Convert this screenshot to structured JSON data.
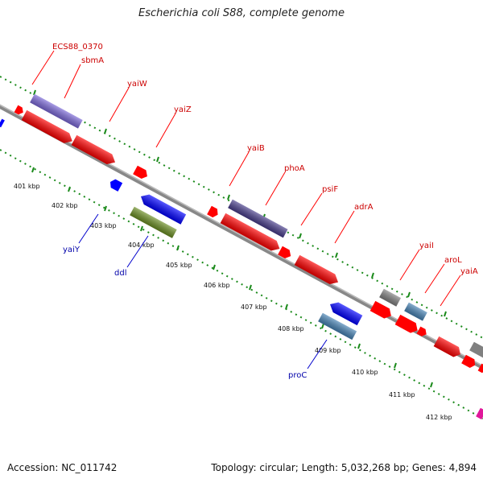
{
  "title": "Escherichia coli S88, complete genome",
  "footer": {
    "accession": "Accession: NC_011742",
    "summary": "Topology: circular; Length: 5,032,268 bp; Genes: 4,894"
  },
  "colors": {
    "forward_gene": "#ff0000",
    "reverse_gene": "#0000ff",
    "label_forward": "#cc0000",
    "label_reverse": "#0000aa",
    "tick": "#1a8a1a",
    "backbone": "#888888"
  },
  "scale_ticks": [
    "401 kbp",
    "402 kbp",
    "403 kbp",
    "404 kbp",
    "405 kbp",
    "406 kbp",
    "407 kbp",
    "408 kbp",
    "409 kbp",
    "410 kbp",
    "411 kbp",
    "412 kbp"
  ],
  "genes_upper": [
    {
      "id": "g1",
      "label": "ECS88_0370",
      "color": "#ff0000"
    },
    {
      "id": "g2",
      "label": "sbmA",
      "color": "#7b68d8"
    },
    {
      "id": "g3",
      "label": "yaiW",
      "color": "#ff0000"
    },
    {
      "id": "g4",
      "label": "yaiZ",
      "color": "#ff0000"
    },
    {
      "id": "g5",
      "label": "yaiB",
      "color": "#ff0000"
    },
    {
      "id": "g6",
      "label": "phoA",
      "color": "#483d8b"
    },
    {
      "id": "g7",
      "label": "psiF",
      "color": "#ff0000"
    },
    {
      "id": "g8",
      "label": "adrA",
      "color": "#ff0000"
    },
    {
      "id": "g9",
      "label": "yaiI",
      "color": "#808080"
    },
    {
      "id": "g10",
      "label": "aroL",
      "color": "#4682b4"
    },
    {
      "id": "g11",
      "label": "yaiA",
      "color": "#ff0000"
    }
  ],
  "genes_lower": [
    {
      "id": "r1",
      "label": "yaiY",
      "color": "#0000ff"
    },
    {
      "id": "r2",
      "label": "ddl",
      "color": "#6b8e23"
    },
    {
      "id": "r3",
      "label": "proC",
      "color": "#4682b4"
    }
  ]
}
